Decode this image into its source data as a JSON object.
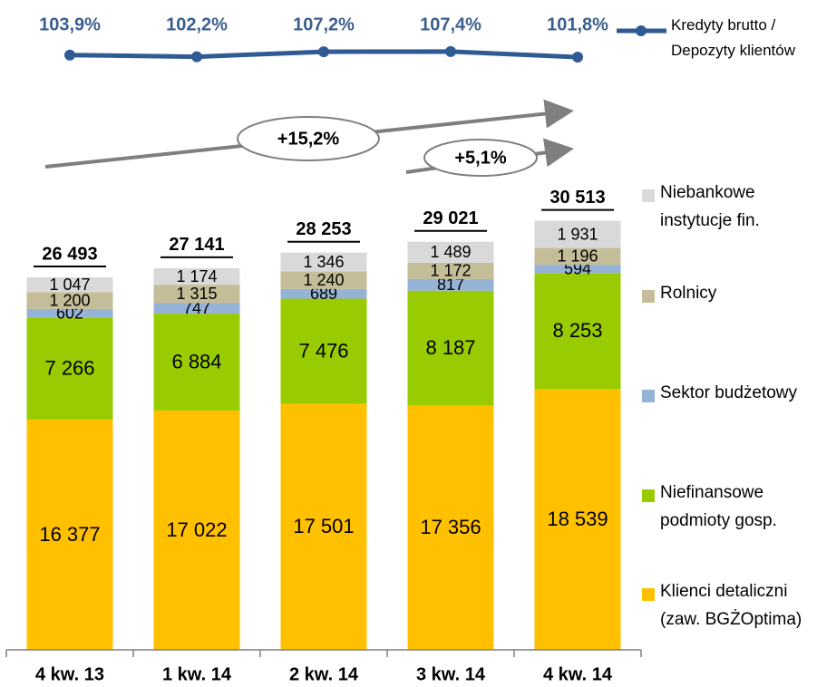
{
  "chart_data": [
    {
      "type": "line",
      "categories": [
        "4 kw. 13",
        "1 kw. 14",
        "2 kw. 14",
        "3 kw. 14",
        "4 kw. 14"
      ],
      "series": [
        {
          "name": "Kredyty brutto / Depozyty klientów",
          "color": "#2f5a93",
          "values": [
            103.9,
            102.2,
            107.2,
            107.4,
            101.8
          ],
          "value_labels": [
            "103,9%",
            "102,2%",
            "107,2%",
            "107,4%",
            "101,8%"
          ]
        }
      ],
      "ylim": [
        60,
        150
      ]
    },
    {
      "type": "stacked_bar",
      "categories": [
        "4 kw. 13",
        "1 kw. 14",
        "2 kw. 14",
        "3 kw. 14",
        "4 kw. 14"
      ],
      "series": [
        {
          "name": "Klienci detaliczni (zaw. BGŻOptima)",
          "color": "#ffc000",
          "values": [
            16377,
            17022,
            17501,
            17356,
            18539
          ],
          "value_labels": [
            "16 377",
            "17 022",
            "17 501",
            "17 356",
            "18 539"
          ]
        },
        {
          "name": "Niefinansowe podmioty gosp.",
          "color": "#99cc00",
          "values": [
            7266,
            6884,
            7476,
            8187,
            8253
          ],
          "value_labels": [
            "7 266",
            "6 884",
            "7 476",
            "8 187",
            "8 253"
          ]
        },
        {
          "name": "Sektor budżetowy",
          "color": "#95b3d7",
          "values": [
            602,
            747,
            689,
            817,
            594
          ]
        },
        {
          "name": "Rolnicy",
          "color": "#c4bd97",
          "values": [
            1200,
            1315,
            1240,
            1172,
            1196
          ],
          "value_labels": [
            "1 200",
            "1 315",
            "1 240",
            "1 172",
            "1 196"
          ]
        },
        {
          "name": "Niebankowe instytucje fin.",
          "color": "#d9d9d9",
          "values": [
            1047,
            1174,
            1346,
            1489,
            1931
          ],
          "value_labels": [
            "1 047",
            "1 174",
            "1 346",
            "1 489",
            "1 931"
          ]
        }
      ],
      "totals": [
        26493,
        27141,
        28253,
        29021,
        30513
      ],
      "total_labels": [
        "26 493",
        "27 141",
        "28 253",
        "29 021",
        "30 513"
      ],
      "ylim": [
        0,
        35000
      ],
      "annotations": [
        "+15,2%",
        "+5,1%"
      ]
    }
  ]
}
